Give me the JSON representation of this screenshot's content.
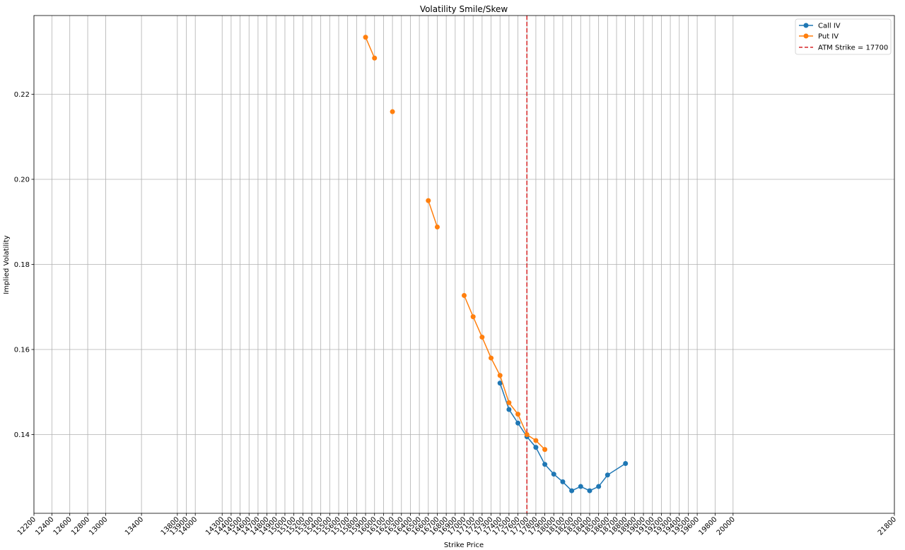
{
  "chart_data": {
    "type": "line",
    "title": "Volatility Smile/Skew",
    "xlabel": "Strike Price",
    "ylabel": "Implied Volatility",
    "xlim": [
      12200,
      21800
    ],
    "ylim": [
      0.1215,
      0.2385
    ],
    "grid": true,
    "legend_position": "top-right",
    "x_ticks": [
      12200,
      12400,
      12600,
      12800,
      13000,
      13400,
      13800,
      13900,
      14000,
      14300,
      14400,
      14500,
      14600,
      14700,
      14800,
      14900,
      15000,
      15100,
      15200,
      15300,
      15400,
      15500,
      15600,
      15700,
      15800,
      15900,
      16000,
      16100,
      16200,
      16300,
      16400,
      16500,
      16600,
      16700,
      16800,
      16900,
      17000,
      17100,
      17200,
      17300,
      17400,
      17500,
      17600,
      17700,
      17800,
      17900,
      18000,
      18100,
      18200,
      18300,
      18400,
      18500,
      18600,
      18700,
      18800,
      18900,
      19000,
      19100,
      19200,
      19300,
      19400,
      19500,
      19600,
      19800,
      20000,
      21800
    ],
    "y_ticks": [
      "0.14",
      "0.16",
      "0.18",
      "0.20",
      "0.22"
    ],
    "series": [
      {
        "name": "Call IV",
        "color": "#1f77b4",
        "marker": "circle",
        "points": [
          [
            17400,
            0.1521
          ],
          [
            17500,
            0.1459
          ],
          [
            17600,
            0.1427
          ],
          [
            17700,
            0.1395
          ],
          [
            17800,
            0.137
          ],
          [
            17900,
            0.133
          ],
          [
            18000,
            0.1307
          ],
          [
            18100,
            0.1289
          ],
          [
            18200,
            0.1268
          ],
          [
            18300,
            0.1278
          ],
          [
            18400,
            0.1268
          ],
          [
            18500,
            0.1278
          ],
          [
            18600,
            0.1305
          ],
          [
            18800,
            0.1332
          ]
        ]
      },
      {
        "name": "Put IV",
        "color": "#ff7f0e",
        "marker": "circle",
        "segments": [
          [
            [
              15900,
              0.2334
            ],
            [
              16000,
              0.2285
            ]
          ],
          [
            [
              16200,
              0.2159
            ]
          ],
          [
            [
              16600,
              0.195
            ],
            [
              16700,
              0.1888
            ]
          ],
          [
            [
              17000,
              0.1727
            ],
            [
              17100,
              0.1677
            ],
            [
              17200,
              0.1629
            ],
            [
              17300,
              0.158
            ],
            [
              17400,
              0.1539
            ],
            [
              17500,
              0.1475
            ],
            [
              17600,
              0.1448
            ],
            [
              17700,
              0.14
            ],
            [
              17800,
              0.1386
            ],
            [
              17900,
              0.1365
            ]
          ]
        ]
      }
    ],
    "reference_lines": [
      {
        "label": "ATM Strike = 17700",
        "x": 17700,
        "color": "#d62728",
        "style": "dashed"
      }
    ]
  }
}
